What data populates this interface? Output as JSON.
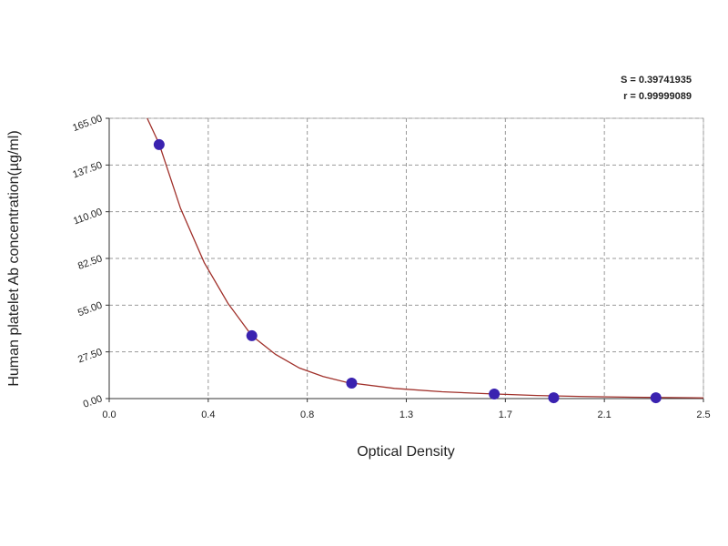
{
  "chart_data": {
    "type": "scatter",
    "x_label": "Optical Density",
    "y_label": "Human platelet Ab concentration(µg/ml)",
    "annotations": [
      "S = 0.39741935",
      "r = 0.99999089"
    ],
    "x": [
      0.21,
      0.6,
      1.02,
      1.62,
      1.87,
      2.3
    ],
    "values": [
      149.5,
      37,
      9.1,
      2.7,
      0.5,
      0.5
    ],
    "color": "#3a22b0",
    "fit": {
      "color": "#a0302a",
      "x": [
        0.16,
        0.21,
        0.3,
        0.4,
        0.5,
        0.6,
        0.7,
        0.8,
        0.9,
        1.0,
        1.2,
        1.4,
        1.6,
        1.8,
        2.0,
        2.2,
        2.5
      ],
      "values": [
        165,
        150,
        112,
        80,
        56,
        37,
        26,
        18,
        13,
        9.5,
        6,
        4,
        2.8,
        1.8,
        1.2,
        0.8,
        0.4
      ]
    },
    "xlim": [
      0,
      2.5
    ],
    "xticks": [
      {
        "value": 0,
        "label": "0.0"
      },
      {
        "value": 0.4167,
        "label": "0.4"
      },
      {
        "value": 0.8333,
        "label": "0.8"
      },
      {
        "value": 1.25,
        "label": "1.3"
      },
      {
        "value": 1.6667,
        "label": "1.7"
      },
      {
        "value": 2.0833,
        "label": "2.1"
      },
      {
        "value": 2.5,
        "label": "2.5"
      }
    ],
    "ylim": [
      0,
      165
    ],
    "yticks": [
      {
        "value": 0,
        "label": "0.00"
      },
      {
        "value": 27.5,
        "label": "27.50"
      },
      {
        "value": 55,
        "label": "55.00"
      },
      {
        "value": 82.5,
        "label": "82.50"
      },
      {
        "value": 110,
        "label": "110.00"
      },
      {
        "value": 137.5,
        "label": "137.50"
      },
      {
        "value": 165,
        "label": "165.00"
      }
    ],
    "grid": true
  }
}
